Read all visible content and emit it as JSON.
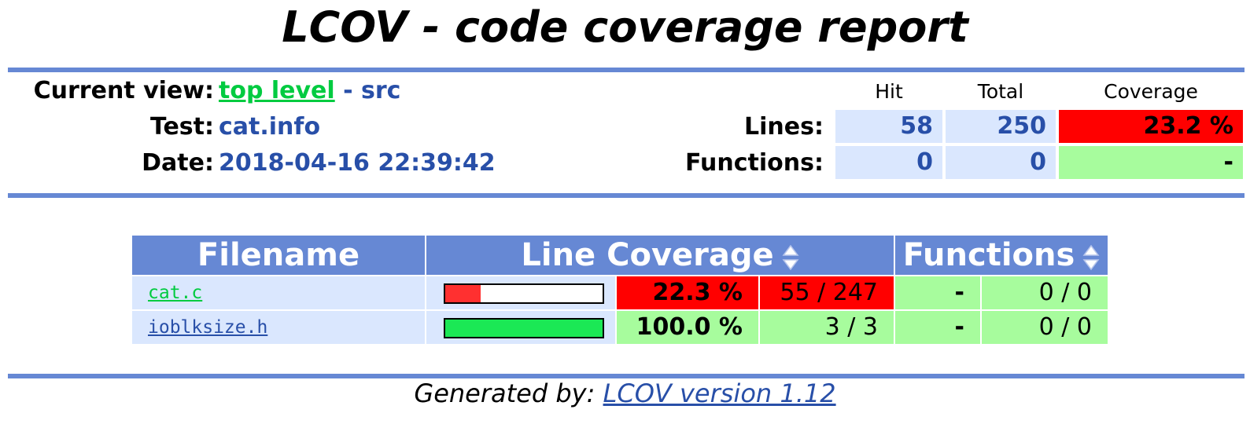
{
  "title": "LCOV - code coverage report",
  "header": {
    "current_view_label": "Current view:",
    "current_view_link": "top level",
    "current_view_sep": " - ",
    "current_view_dir": "src",
    "test_label": "Test:",
    "test_value": "cat.info",
    "date_label": "Date:",
    "date_value": "2018-04-16 22:39:42"
  },
  "summary": {
    "col_hit": "Hit",
    "col_total": "Total",
    "col_coverage": "Coverage",
    "lines_label": "Lines:",
    "lines_hit": "58",
    "lines_total": "250",
    "lines_coverage": "23.2 %",
    "functions_label": "Functions:",
    "functions_hit": "0",
    "functions_total": "0",
    "functions_coverage": "-"
  },
  "file_table": {
    "col_filename": "Filename",
    "col_line_coverage": "Line Coverage",
    "col_functions": "Functions",
    "rows": [
      {
        "filename": "cat.c",
        "line_fraction": 0.223,
        "line_pct": "22.3 %",
        "line_counts": "55 / 247",
        "func_pct": "-",
        "func_counts": "0 / 0"
      },
      {
        "filename": "ioblksize.h",
        "line_fraction": 1.0,
        "line_pct": "100.0 %",
        "line_counts": "3 / 3",
        "func_pct": "-",
        "func_counts": "0 / 0"
      }
    ]
  },
  "footer": {
    "generated_label": "Generated by: ",
    "generator_link": "LCOV version 1.12"
  },
  "colors": {
    "ruler": "#6688d4",
    "link_green": "#00cb40",
    "value_blue": "#284fa8",
    "cell_blue": "#dae7fe",
    "coverage_low": "#ff0000",
    "coverage_high": "#a7fc9d",
    "bar_low": "#ff3030",
    "bar_high": "#1be855"
  }
}
